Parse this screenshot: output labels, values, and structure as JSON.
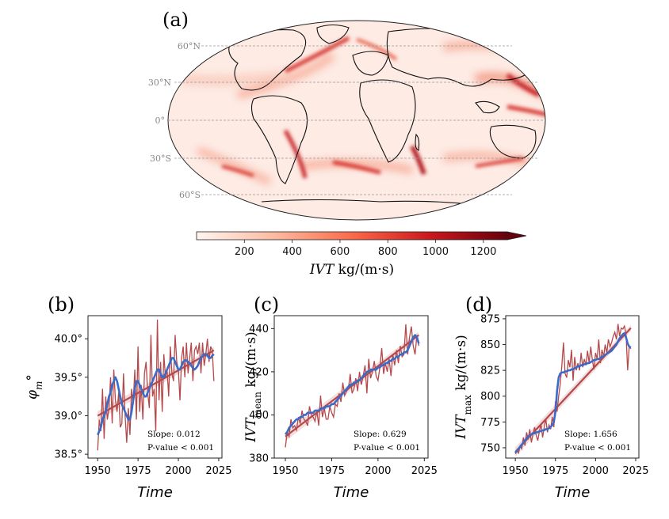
{
  "map": {
    "panel_label": "(a)",
    "lat_labels": [
      "60°N",
      "30°N",
      "0°",
      "30°S",
      "60°S"
    ],
    "colorbar": {
      "ticks": [
        "200",
        "400",
        "600",
        "800",
        "1000",
        "1200"
      ],
      "label_var": "IVT",
      "label_unit": " kg/(m·s)",
      "colors": [
        "#fff5f0",
        "#fcbba1",
        "#fb6a4a",
        "#cb181d",
        "#67000d"
      ]
    }
  },
  "chart_data": [
    {
      "type": "line",
      "panel_label": "(b)",
      "ylabel_var": "φ",
      "ylabel_sub": "m",
      "ylabel_unit": "°",
      "xlabel": "Time",
      "x_ticks": [
        1950,
        1975,
        2000,
        2025
      ],
      "y_ticks": [
        "38.5°",
        "39.0°",
        "39.5°",
        "40.0°"
      ],
      "y_tick_values": [
        38.5,
        39.0,
        39.5,
        40.0
      ],
      "xlim": [
        1944,
        2027
      ],
      "ylim": [
        38.45,
        40.3
      ],
      "x_start": 1950,
      "series": [
        {
          "role": "annual",
          "color": "#b5484a",
          "values": [
            38.55,
            38.95,
            38.8,
            39.35,
            38.7,
            39.25,
            38.95,
            39.1,
            39.5,
            38.9,
            39.6,
            39.2,
            39.05,
            39.3,
            38.85,
            38.9,
            39.55,
            39.0,
            38.65,
            39.1,
            38.75,
            39.35,
            39.15,
            39.6,
            38.95,
            39.9,
            39.05,
            39.4,
            38.95,
            39.55,
            39.7,
            39.3,
            39.1,
            40.05,
            39.25,
            39.35,
            38.8,
            40.25,
            39.2,
            39.7,
            39.05,
            39.8,
            39.5,
            39.6,
            39.25,
            39.9,
            39.55,
            39.45,
            40.05,
            39.7,
            39.6,
            39.2,
            39.75,
            39.9,
            39.5,
            39.95,
            39.55,
            39.75,
            39.95,
            39.45,
            39.85,
            39.9,
            39.8,
            39.95,
            39.55,
            39.95,
            39.65,
            39.8,
            40.0,
            39.7,
            39.9,
            39.85,
            39.45
          ]
        },
        {
          "role": "smoothed",
          "color": "#3a6bc9",
          "values": [
            38.75,
            38.8,
            38.85,
            38.95,
            39.0,
            39.05,
            39.15,
            39.25,
            39.3,
            39.4,
            39.45,
            39.5,
            39.45,
            39.35,
            39.25,
            39.15,
            39.1,
            39.05,
            39.0,
            38.95,
            38.95,
            39.05,
            39.2,
            39.35,
            39.45,
            39.45,
            39.4,
            39.35,
            39.3,
            39.25,
            39.25,
            39.3,
            39.35,
            39.4,
            39.45,
            39.5,
            39.55,
            39.6,
            39.6,
            39.55,
            39.5,
            39.5,
            39.55,
            39.6,
            39.65,
            39.7,
            39.75,
            39.75,
            39.7,
            39.65,
            39.6,
            39.6,
            39.65,
            39.7,
            39.72,
            39.72,
            39.7,
            39.68,
            39.65,
            39.62,
            39.6,
            39.62,
            39.65,
            39.7,
            39.75,
            39.78,
            39.8,
            39.8,
            39.78,
            39.75,
            39.75,
            39.78,
            39.8
          ]
        },
        {
          "role": "trend",
          "color": "#b5484a",
          "values": [
            39.0,
            39.85
          ],
          "x": [
            1950,
            2022
          ]
        }
      ],
      "slope_text": "Slope: 0.012",
      "pvalue_text": "P-value < 0.001"
    },
    {
      "type": "line",
      "panel_label": "(c)",
      "ylabel_var": "IVT",
      "ylabel_sub": "mean",
      "ylabel_unit": " kg/(m·s)",
      "xlabel": "Time",
      "x_ticks": [
        1950,
        1975,
        2000,
        2025
      ],
      "y_ticks": [
        "380",
        "400",
        "420",
        "440"
      ],
      "y_tick_values": [
        380,
        400,
        420,
        440
      ],
      "xlim": [
        1944,
        2027
      ],
      "ylim": [
        380,
        446
      ],
      "x_start": 1950,
      "series": [
        {
          "role": "annual",
          "color": "#b5484a",
          "values": [
            385,
            392,
            390,
            398,
            394,
            395,
            393,
            399,
            396,
            402,
            398,
            397,
            395,
            404,
            400,
            399,
            397,
            402,
            395,
            409,
            399,
            403,
            398,
            398,
            404,
            401,
            399,
            405,
            404,
            410,
            406,
            415,
            409,
            411,
            412,
            419,
            410,
            412,
            417,
            411,
            420,
            414,
            418,
            423,
            410,
            426,
            417,
            420,
            425,
            418,
            416,
            422,
            431,
            419,
            424,
            420,
            426,
            418,
            428,
            423,
            430,
            424,
            432,
            427,
            428,
            442,
            428,
            436,
            441,
            432,
            428,
            437,
            432
          ]
        },
        {
          "role": "smoothed",
          "color": "#3a6bc9",
          "values": [
            391,
            392,
            394,
            395,
            396,
            397,
            398,
            398,
            399,
            399,
            400,
            400,
            401,
            401,
            401,
            401,
            402,
            402,
            402,
            403,
            403,
            403,
            404,
            404,
            404,
            405,
            405,
            406,
            407,
            408,
            409,
            410,
            411,
            412,
            413,
            414,
            414,
            415,
            415,
            416,
            416,
            417,
            418,
            419,
            420,
            420,
            421,
            421,
            421,
            421,
            422,
            422,
            423,
            423,
            424,
            424,
            425,
            425,
            426,
            426,
            427,
            427,
            428,
            428,
            429,
            429,
            430,
            432,
            434,
            436,
            437,
            436,
            433
          ]
        },
        {
          "role": "trend",
          "color": "#b5484a",
          "values": [
            390,
            437
          ],
          "x": [
            1950,
            2022
          ]
        }
      ],
      "slope_text": "Slope: 0.629",
      "pvalue_text": "P-value < 0.001"
    },
    {
      "type": "line",
      "panel_label": "(d)",
      "ylabel_var": "IVT",
      "ylabel_sub": "max",
      "ylabel_unit": " kg/(m·s)",
      "xlabel": "Time",
      "x_ticks": [
        1950,
        1975,
        2000,
        2025
      ],
      "y_ticks": [
        "750",
        "775",
        "800",
        "825",
        "850",
        "875"
      ],
      "y_tick_values": [
        750,
        775,
        800,
        825,
        850,
        875
      ],
      "xlim": [
        1944,
        2027
      ],
      "ylim": [
        740,
        878
      ],
      "x_start": 1950,
      "series": [
        {
          "role": "annual",
          "color": "#b5484a",
          "values": [
            744,
            748,
            745,
            752,
            749,
            760,
            752,
            765,
            758,
            768,
            755,
            763,
            770,
            762,
            757,
            766,
            773,
            760,
            770,
            778,
            765,
            772,
            768,
            780,
            770,
            795,
            785,
            800,
            812,
            830,
            852,
            822,
            818,
            835,
            828,
            845,
            815,
            838,
            825,
            832,
            825,
            842,
            828,
            836,
            830,
            844,
            832,
            848,
            835,
            826,
            842,
            836,
            855,
            832,
            845,
            838,
            850,
            842,
            855,
            848,
            852,
            858,
            862,
            855,
            870,
            858,
            866,
            865,
            868,
            860,
            825,
            848,
            846
          ]
        },
        {
          "role": "smoothed",
          "color": "#3a6bc9",
          "values": [
            745,
            747,
            749,
            751,
            753,
            755,
            757,
            759,
            761,
            762,
            763,
            764,
            764,
            765,
            765,
            766,
            766,
            767,
            767,
            768,
            768,
            769,
            770,
            772,
            775,
            785,
            805,
            818,
            822,
            823,
            823,
            824,
            824,
            825,
            825,
            826,
            826,
            827,
            828,
            829,
            829,
            830,
            830,
            831,
            831,
            832,
            832,
            833,
            834,
            835,
            835,
            836,
            836,
            837,
            838,
            839,
            840,
            841,
            842,
            843,
            844,
            846,
            848,
            850,
            853,
            856,
            858,
            860,
            861,
            857,
            851,
            848,
            847
          ]
        },
        {
          "role": "trend",
          "color": "#b5484a",
          "values": [
            746,
            866
          ],
          "x": [
            1950,
            2022
          ]
        }
      ],
      "slope_text": "Slope: 1.656",
      "pvalue_text": "P-value < 0.001"
    }
  ]
}
